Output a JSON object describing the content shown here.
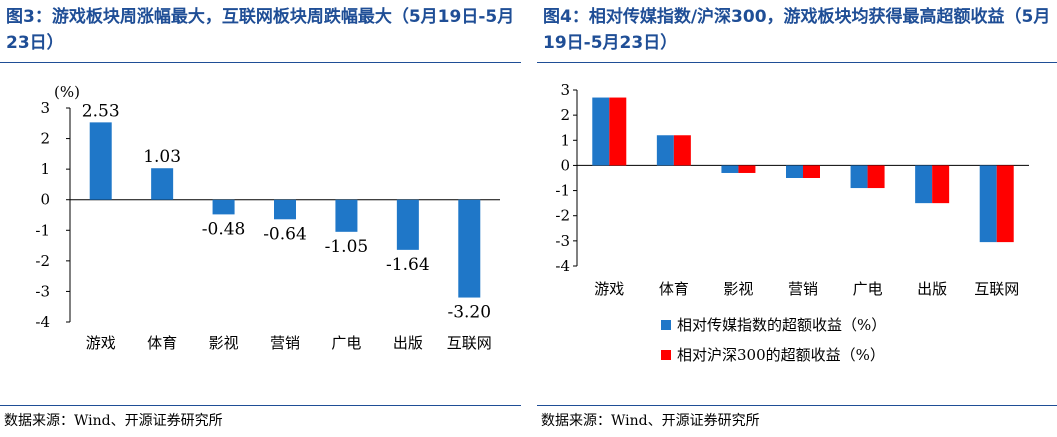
{
  "left": {
    "title": "图3：游戏板块周涨幅最大，互联网板块周跌幅最大（5月19日-5月23日）",
    "source": "数据来源：Wind、开源证券研究所"
  },
  "right": {
    "title": "图4：相对传媒指数/沪深300，游戏板块均获得最高超额收益（5月19日-5月23日）",
    "source": "数据来源：Wind、开源证券研究所"
  },
  "colors": {
    "blue_bar": "#1f77c8",
    "red_bar": "#ff0000",
    "title_blue": "#1f4e96"
  },
  "chart_data": [
    {
      "type": "bar",
      "categories": [
        "游戏",
        "体育",
        "影视",
        "营销",
        "广电",
        "出版",
        "互联网"
      ],
      "values": [
        2.53,
        1.03,
        -0.48,
        -0.64,
        -1.05,
        -1.64,
        -3.2
      ],
      "data_labels": [
        "2.53",
        "1.03",
        "-0.48",
        "-0.64",
        "-1.05",
        "-1.64",
        "-3.20"
      ],
      "ylabel": "(%)",
      "ylim": [
        -4,
        3
      ],
      "yticks": [
        "3",
        "2",
        "1",
        "0",
        "-1",
        "-2",
        "-3",
        "-4"
      ],
      "grid": false
    },
    {
      "type": "bar",
      "categories": [
        "游戏",
        "体育",
        "影视",
        "营销",
        "广电",
        "出版",
        "互联网"
      ],
      "series": [
        {
          "name": "相对传媒指数的超额收益（%）",
          "values": [
            2.7,
            1.2,
            -0.3,
            -0.5,
            -0.9,
            -1.5,
            -3.05
          ]
        },
        {
          "name": "相对沪深300的超额收益（%）",
          "values": [
            2.7,
            1.2,
            -0.3,
            -0.5,
            -0.9,
            -1.5,
            -3.05
          ]
        }
      ],
      "ylim": [
        -4,
        3
      ],
      "yticks": [
        "3",
        "2",
        "1",
        "0",
        "-1",
        "-2",
        "-3",
        "-4"
      ],
      "legend": "bottom",
      "grid": false
    }
  ]
}
